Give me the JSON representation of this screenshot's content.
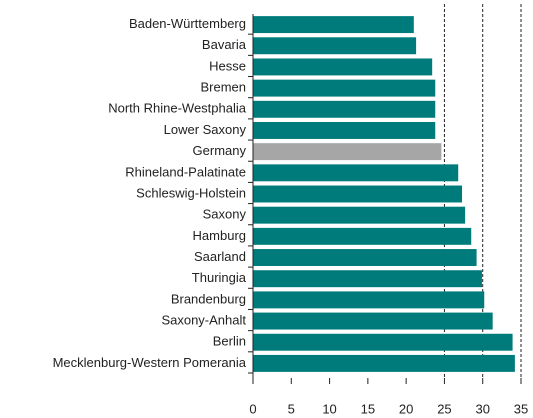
{
  "chart_data": {
    "type": "barh",
    "categories": [
      "Baden-Württemberg",
      "Bavaria",
      "Hesse",
      "Bremen",
      "North Rhine-Westphalia",
      "Lower Saxony",
      "Germany",
      "Rhineland-Palatinate",
      "Schleswig-Holstein",
      "Saxony",
      "Hamburg",
      "Saarland",
      "Thuringia",
      "Brandenburg",
      "Saxony-Anhalt",
      "Berlin",
      "Mecklenburg-Western Pomerania"
    ],
    "values": [
      21.0,
      21.3,
      23.4,
      23.8,
      23.8,
      23.8,
      24.6,
      26.8,
      27.3,
      27.7,
      28.5,
      29.2,
      29.9,
      30.2,
      31.3,
      33.9,
      34.2
    ],
    "bar_colors": [
      "#007b7b",
      "#007b7b",
      "#007b7b",
      "#007b7b",
      "#007b7b",
      "#007b7b",
      "#a6a6a6",
      "#007b7b",
      "#007b7b",
      "#007b7b",
      "#007b7b",
      "#007b7b",
      "#007b7b",
      "#007b7b",
      "#007b7b",
      "#007b7b",
      "#007b7b"
    ],
    "xlim": [
      0,
      35
    ],
    "xticks": [
      0,
      5,
      10,
      15,
      20,
      25,
      30,
      35
    ],
    "grid": true
  }
}
